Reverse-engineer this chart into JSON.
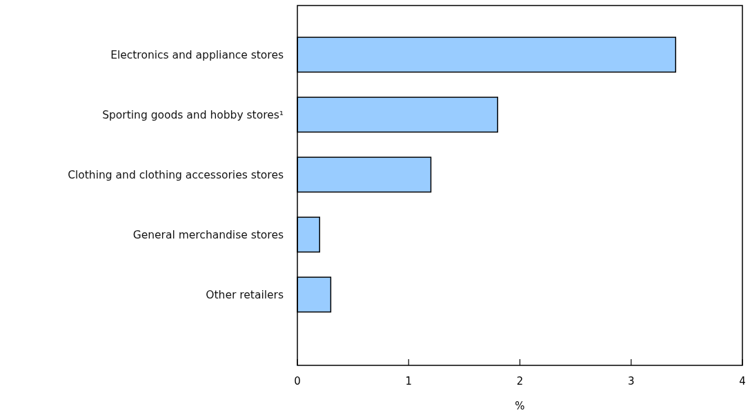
{
  "chart_data": {
    "type": "bar",
    "orientation": "horizontal",
    "categories": [
      "Electronics and appliance stores",
      "Sporting goods and hobby stores¹",
      "Clothing and clothing accessories stores",
      "General merchandise stores",
      "Other retailers"
    ],
    "values": [
      3.4,
      1.8,
      1.2,
      0.2,
      0.3
    ],
    "color": "#99ccff",
    "xlim": [
      0,
      4
    ],
    "xticks": [
      0,
      1,
      2,
      3,
      4
    ],
    "xlabel": "%",
    "grid": false
  }
}
